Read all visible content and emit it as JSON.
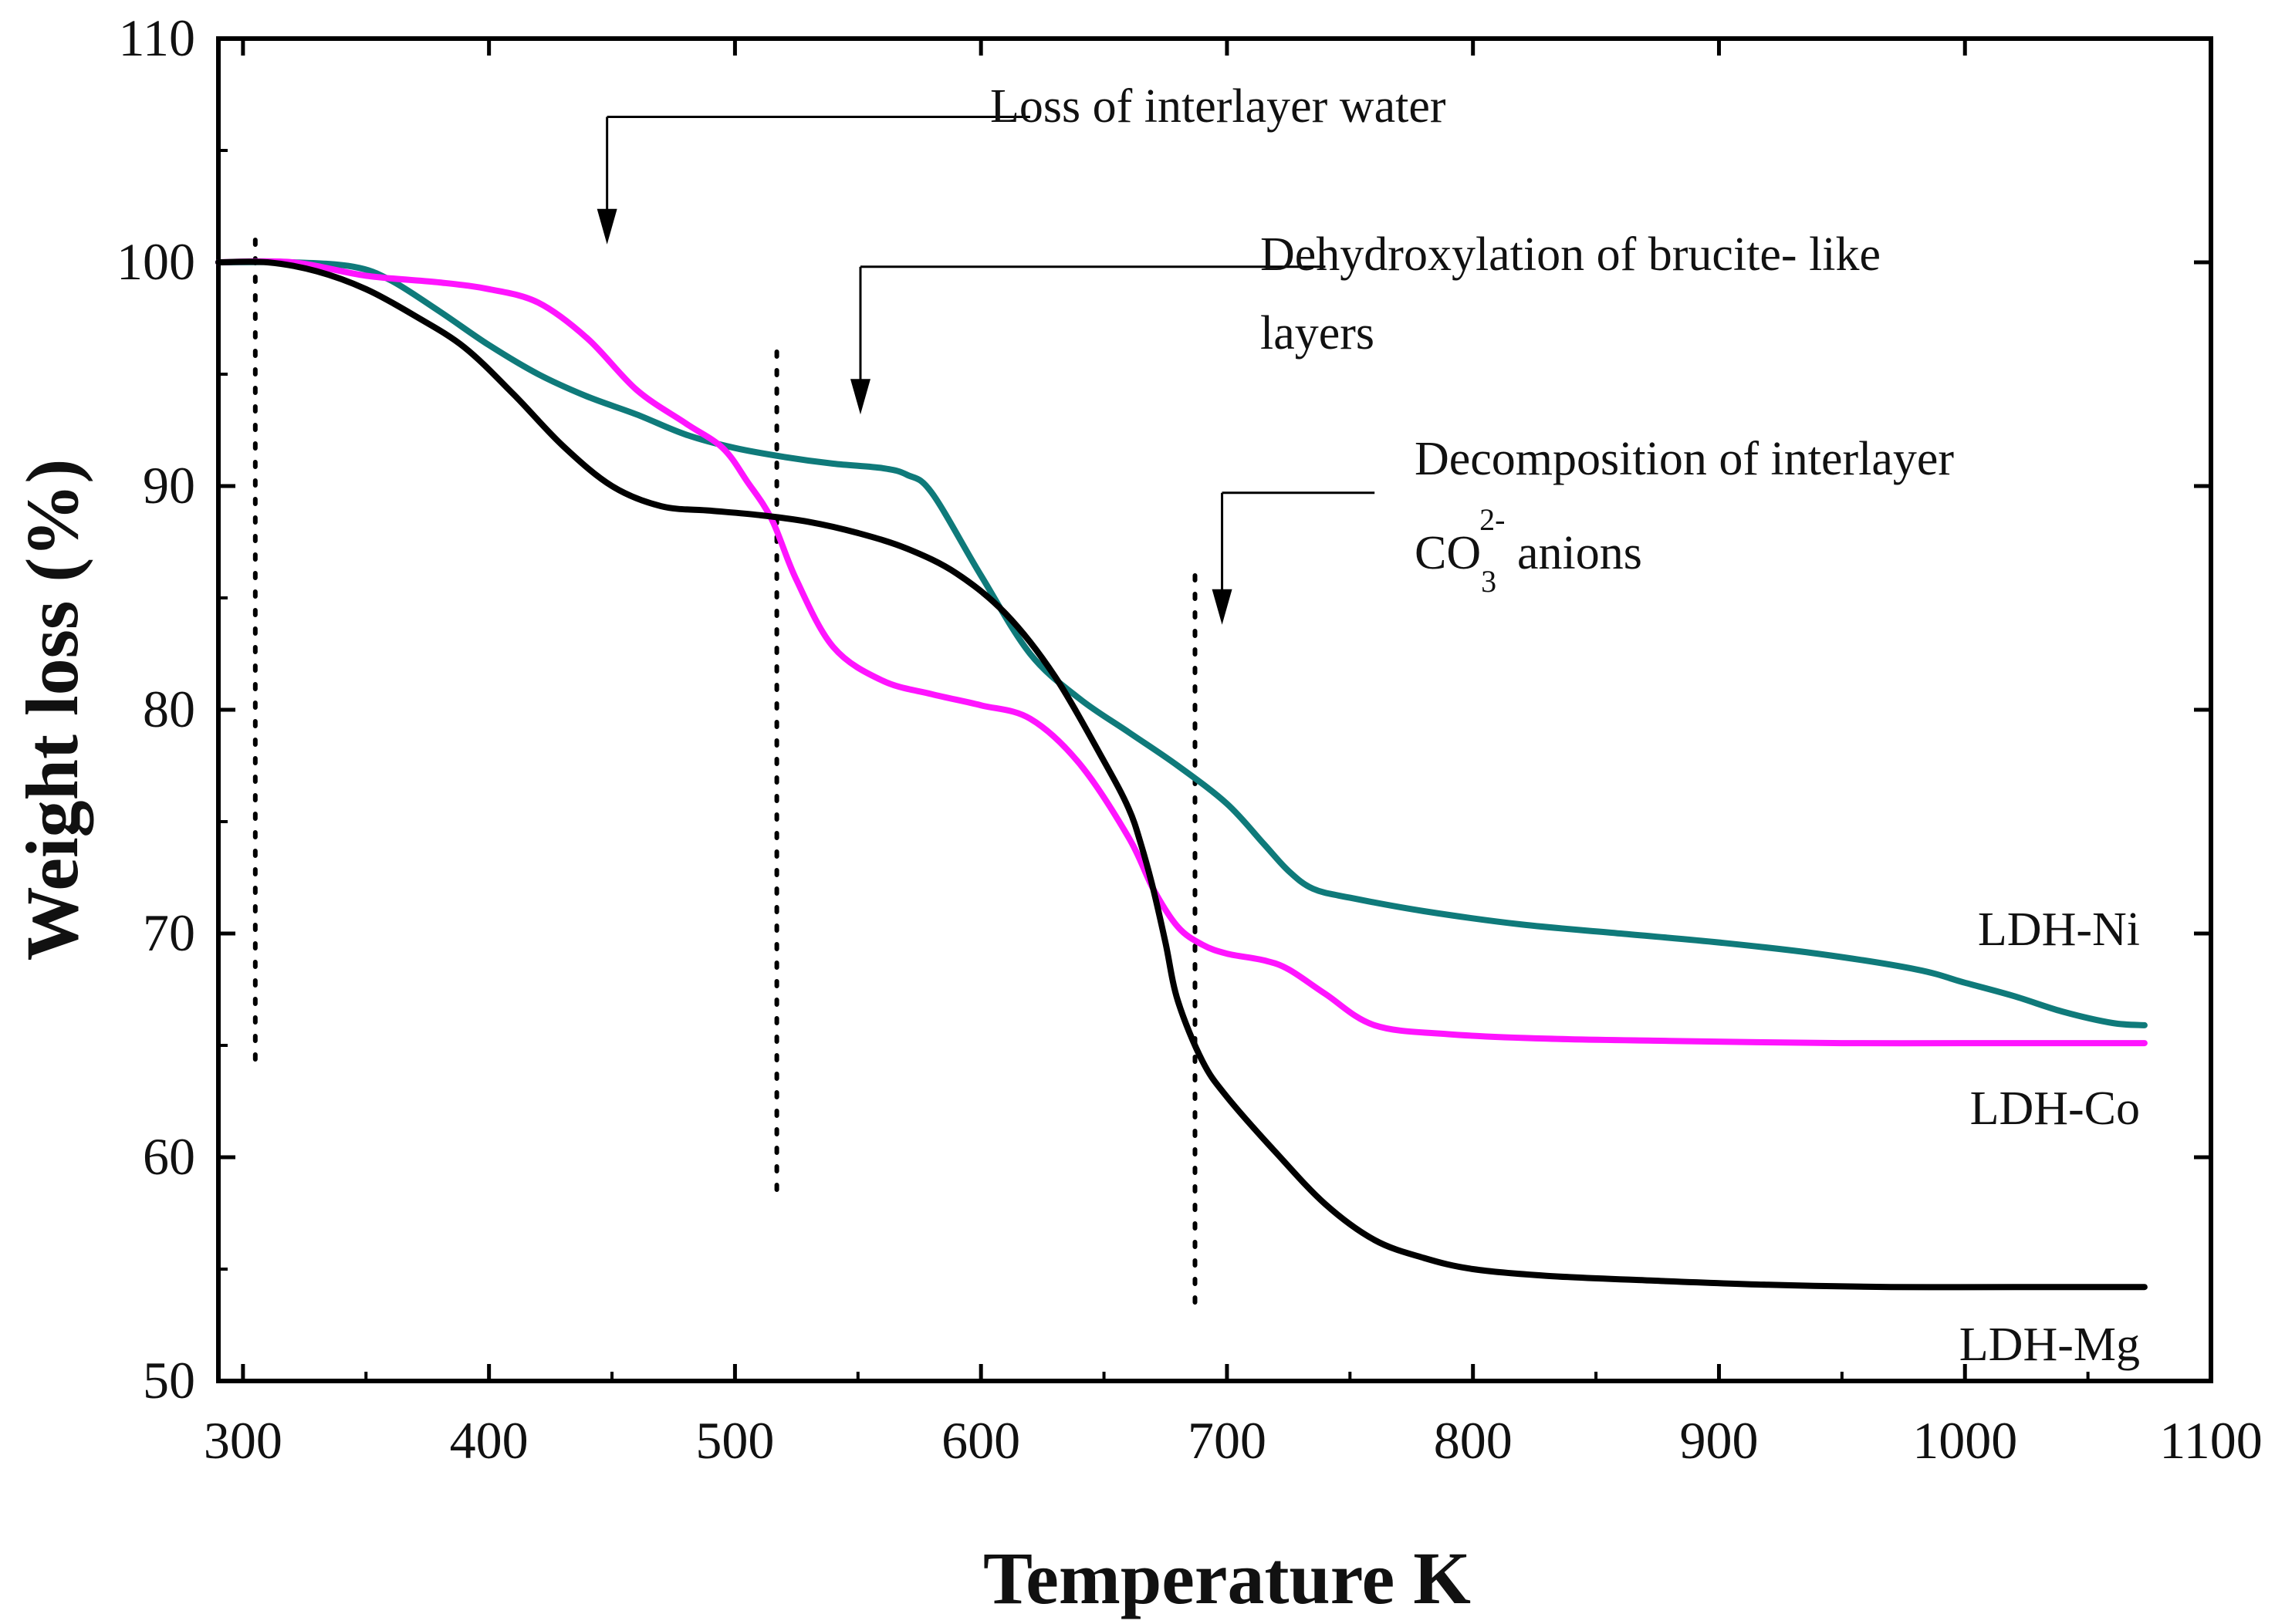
{
  "chart_data": {
    "type": "line",
    "title": "",
    "xlabel": "Temperature K",
    "ylabel": "Weight loss (%)",
    "xlim": [
      290,
      1100
    ],
    "ylim": [
      50,
      110
    ],
    "xticks": [
      300,
      400,
      500,
      600,
      700,
      800,
      900,
      1000,
      1100
    ],
    "yticks": [
      50,
      60,
      70,
      80,
      90,
      100,
      110
    ],
    "xtick_labels": [
      "300",
      "400",
      "500",
      "600",
      "700",
      "800",
      "900",
      "1000",
      "1100"
    ],
    "ytick_labels": [
      "50",
      "60",
      "70",
      "80",
      "90",
      "100",
      "110"
    ],
    "grid": false,
    "series": [
      {
        "name": "LDH-Ni",
        "color": "#0f7a7a",
        "x": [
          290,
          320,
          345,
          360,
          380,
          400,
          420,
          440,
          460,
          480,
          500,
          520,
          540,
          560,
          570,
          580,
          600,
          620,
          640,
          660,
          680,
          700,
          715,
          725,
          735,
          750,
          780,
          820,
          860,
          900,
          940,
          980,
          1000,
          1020,
          1040,
          1060,
          1073
        ],
        "y": [
          100,
          100,
          99.8,
          99.2,
          97.8,
          96.3,
          95,
          94,
          93.2,
          92.3,
          91.7,
          91.3,
          91,
          90.8,
          90.5,
          89.7,
          86,
          82.5,
          80.5,
          79,
          77.5,
          75.8,
          74,
          72.8,
          72,
          71.6,
          71,
          70.4,
          70,
          69.6,
          69.1,
          68.4,
          67.8,
          67.2,
          66.5,
          66,
          65.9
        ]
      },
      {
        "name": "LDH-Co",
        "color": "#ff14ff",
        "x": [
          290,
          320,
          350,
          380,
          400,
          420,
          440,
          460,
          480,
          495,
          505,
          515,
          525,
          540,
          560,
          580,
          600,
          620,
          640,
          660,
          670,
          680,
          690,
          700,
          715,
          725,
          740,
          760,
          790,
          830,
          880,
          950,
          1000,
          1073
        ],
        "y": [
          100,
          100,
          99.4,
          99.1,
          98.8,
          98.2,
          96.6,
          94.3,
          92.8,
          91.7,
          90.2,
          88.5,
          85.8,
          82.8,
          81.3,
          80.7,
          80.2,
          79.6,
          77.6,
          74.3,
          72,
          70.3,
          69.5,
          69.1,
          68.8,
          68.4,
          67.3,
          65.9,
          65.5,
          65.3,
          65.2,
          65.1,
          65.1,
          65.1
        ]
      },
      {
        "name": "LDH-Mg",
        "color": "#000000",
        "x": [
          290,
          310,
          330,
          350,
          370,
          390,
          410,
          430,
          450,
          470,
          490,
          510,
          530,
          550,
          570,
          590,
          610,
          630,
          650,
          660,
          665,
          670,
          675,
          680,
          690,
          700,
          720,
          740,
          760,
          780,
          800,
          830,
          870,
          920,
          970,
          1020,
          1073
        ],
        "y": [
          100,
          100,
          99.6,
          98.8,
          97.6,
          96.2,
          94.1,
          91.8,
          90,
          89.1,
          88.9,
          88.7,
          88.4,
          87.9,
          87.2,
          86.1,
          84.3,
          81.5,
          77.7,
          75.6,
          74,
          72,
          69.6,
          67,
          64.3,
          62.7,
          60.2,
          57.9,
          56.3,
          55.5,
          55,
          54.7,
          54.5,
          54.3,
          54.2,
          54.2,
          54.2
        ]
      }
    ],
    "reference_lines": [
      {
        "x": 305,
        "y_range": [
          64,
          101
        ]
      },
      {
        "x": 517,
        "y_range": [
          58.5,
          96
        ]
      },
      {
        "x": 687,
        "y_range": [
          53,
          86
        ]
      }
    ],
    "arrows": [
      {
        "x": 448,
        "y_from": 106.5,
        "y_to": 100.8,
        "h_to_x": 620
      },
      {
        "x": 551,
        "y_from": 99.8,
        "y_to": 93.2,
        "h_to_x": 740
      },
      {
        "x": 698,
        "y_from": 89.7,
        "y_to": 83.8,
        "h_to_x": 760
      }
    ],
    "annotations": {
      "water": "Loss of interlayer water",
      "dehydroxylation_line1": "Dehydroxylation of brucite- like",
      "dehydroxylation_line2": "layers",
      "carbonate_line1": "Decomposition of interlayer",
      "carbonate_co": "CO",
      "carbonate_sub": "3",
      "carbonate_sup": "2-",
      "carbonate_rest": " anions"
    },
    "series_labels": {
      "ni": "LDH-Ni",
      "co": "LDH-Co",
      "mg": "LDH-Mg"
    }
  }
}
